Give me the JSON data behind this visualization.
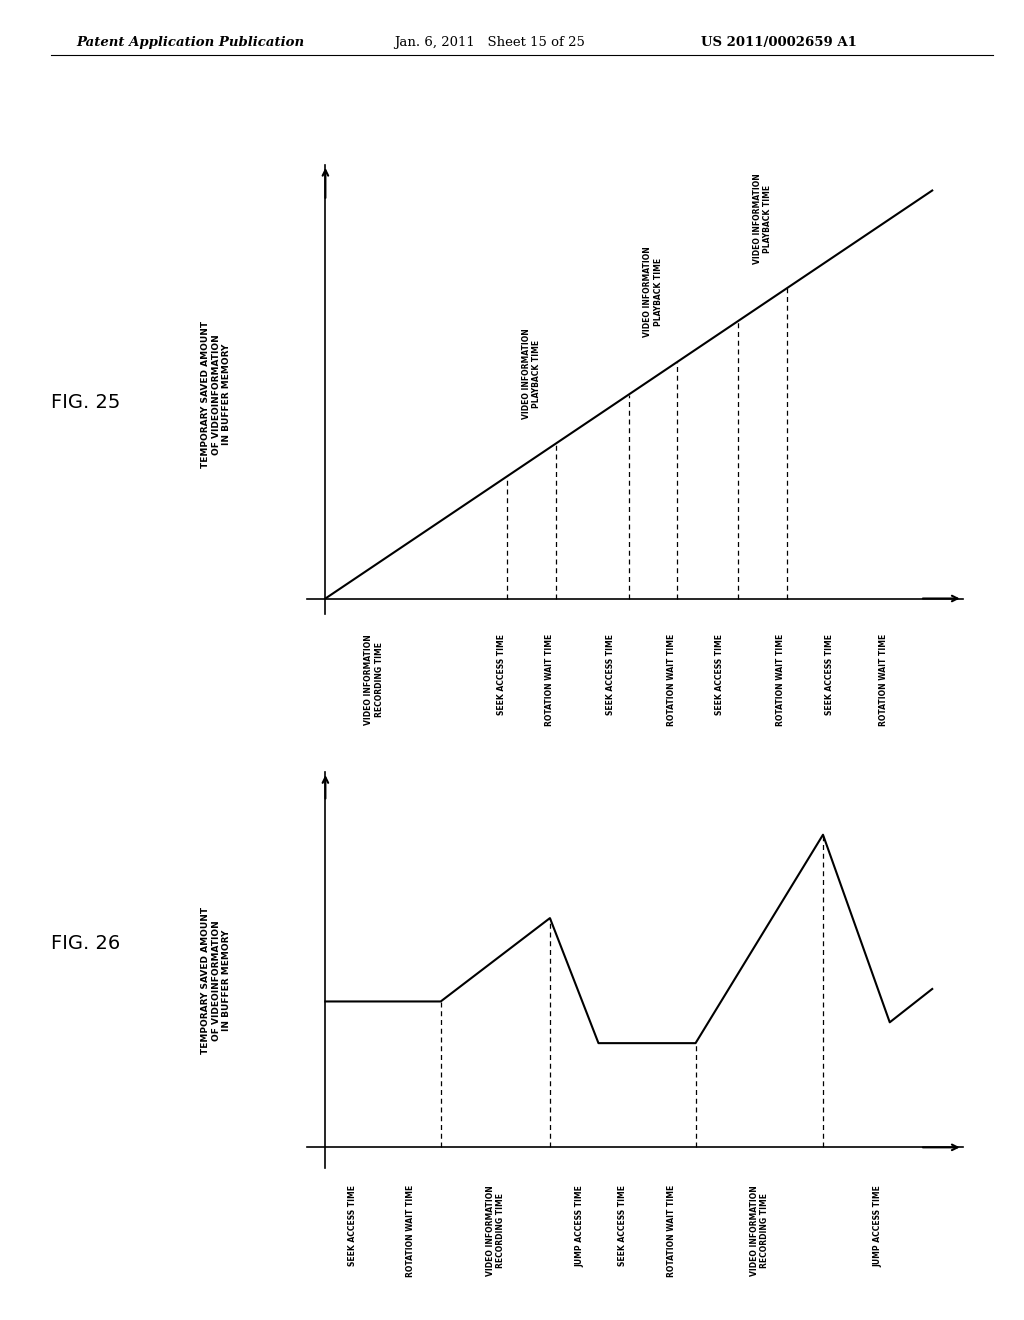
{
  "header_left": "Patent Application Publication",
  "header_center": "Jan. 6, 2011   Sheet 15 of 25",
  "header_right": "US 2011/0002659 A1",
  "fig25_label": "FIG. 25",
  "fig26_label": "FIG. 26",
  "fig25_ylabel": "TEMPORARY SAVED AMOUNT\nOF VIDEOINFORMATION\nIN BUFFER MEMORY",
  "fig26_ylabel": "TEMPORARY SAVED AMOUNT\nOF VIDEOINFORMATION\nIN BUFFER MEMORY",
  "fig25_xticks": [
    "VIDEO INFORMATION\nRECORDING TIME",
    "SEEK ACCESS TIME",
    "ROTATION WAIT TIME",
    "SEEK ACCESS TIME",
    "ROTATION WAIT TIME",
    "SEEK ACCESS TIME",
    "ROTATION WAIT TIME",
    "SEEK ACCESS TIME",
    "ROTATION WAIT TIME"
  ],
  "fig26_xticks": [
    "SEEK ACCESS TIME",
    "ROTATION WAIT TIME",
    "VIDEO INFORMATION\nRECORDING TIME",
    "JUMP ACCESS TIME",
    "SEEK ACCESS TIME",
    "ROTATION WAIT TIME",
    "VIDEO INFORMATION\nRECORDING TIME",
    "JUMP ACCESS TIME"
  ],
  "playback_label": "VIDEO INFORMATION\nPLAYBACK TIME",
  "background": "#ffffff",
  "line_color": "#000000"
}
